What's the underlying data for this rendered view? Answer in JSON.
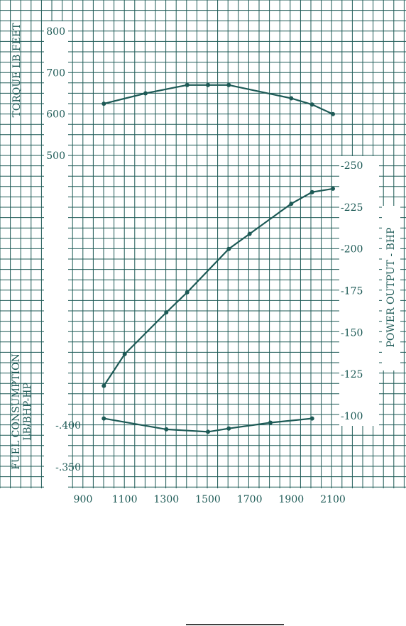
{
  "chart_data": {
    "type": "line",
    "colors": {
      "line": "#1d5a56",
      "grid": "#1d5a56",
      "background": "#ffffff"
    },
    "grid": true,
    "x_axis": {
      "ticks": [
        "900",
        "1100",
        "1300",
        "1500",
        "1700",
        "1900",
        "2100"
      ],
      "range": [
        800,
        2250
      ]
    },
    "axes": {
      "torque": {
        "label": "TORQUE LB FEET",
        "ticks": [
          "800",
          "700",
          "600",
          "500"
        ],
        "range": [
          440,
          845
        ]
      },
      "power": {
        "label": "POWER OUTPUT - BHP",
        "ticks": [
          "-250",
          "-225",
          "-200",
          "-175",
          "-150",
          "-125",
          "-100"
        ],
        "range": [
          80,
          270
        ]
      },
      "fuel": {
        "label_line1": "FUEL CONSUMPTION",
        "label_line2": "LB/BHP-HP",
        "ticks": [
          "-.400",
          "-.350"
        ],
        "range": [
          0.31,
          0.42
        ]
      }
    },
    "series": [
      {
        "axis": "torque",
        "x": [
          1000,
          1200,
          1400,
          1500,
          1600,
          1900,
          2000,
          2100
        ],
        "y": [
          625,
          650,
          670,
          670,
          670,
          638,
          623,
          600
        ]
      },
      {
        "axis": "power",
        "x": [
          1000,
          1100,
          1300,
          1400,
          1600,
          1700,
          1900,
          2000,
          2100
        ],
        "y": [
          118,
          137,
          162,
          174,
          200,
          209,
          227,
          234,
          236
        ]
      },
      {
        "axis": "fuel",
        "x": [
          1000,
          1300,
          1500,
          1600,
          1800,
          2000
        ],
        "y": [
          0.408,
          0.395,
          0.392,
          0.396,
          0.403,
          0.408
        ]
      }
    ]
  }
}
